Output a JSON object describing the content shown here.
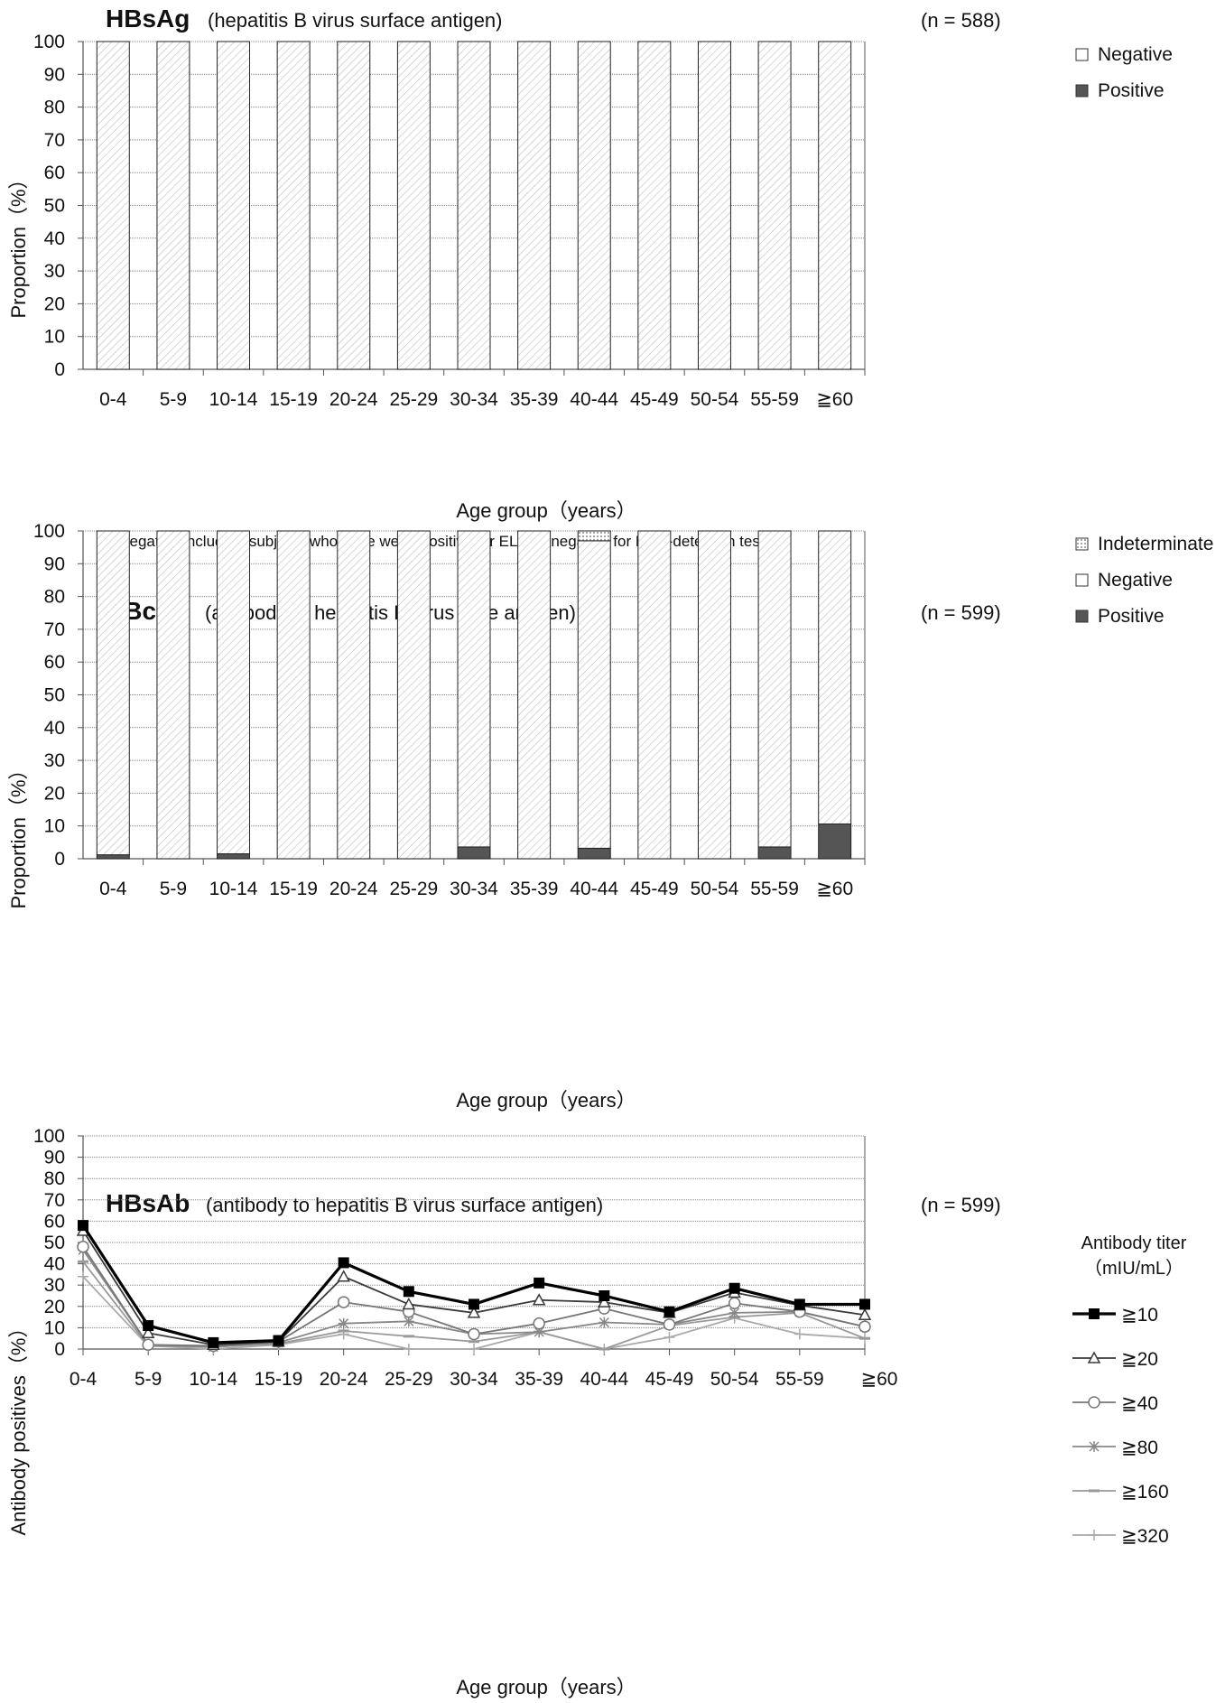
{
  "categories": [
    "0-4",
    "5-9",
    "10-14",
    "15-19",
    "20-24",
    "25-29",
    "30-34",
    "35-39",
    "40-44",
    "45-49",
    "50-54",
    "55-59",
    "≧60"
  ],
  "colors": {
    "positive": "#555555",
    "hatch": "#c8c8c8",
    "grid": "#888888",
    "axis": "#555555"
  },
  "chart_data": [
    {
      "type": "bar",
      "title_bold": "HBsAg",
      "title_rest": "(hepatitis B virus surface antigen)",
      "n_label": "(n = 588)",
      "xlabel": "Age group（years）",
      "ylabel": "Proportion（%）",
      "ylim": [
        0,
        100
      ],
      "yticks": [
        0,
        10,
        20,
        30,
        40,
        50,
        60,
        70,
        80,
        90,
        100
      ],
      "grid": true,
      "legend_position": "top-right",
      "stacked": true,
      "note": "※Negative include 9 subjects who were weak-positive for ELISA (negative for DNA-detection test).",
      "series": [
        {
          "name": "Positive",
          "values": [
            0,
            0,
            0,
            0,
            0,
            0,
            0,
            0,
            0,
            0,
            0,
            0,
            0
          ]
        },
        {
          "name": "Negative",
          "values": [
            100,
            100,
            100,
            100,
            100,
            100,
            100,
            100,
            100,
            100,
            100,
            100,
            100
          ]
        }
      ],
      "legend": [
        "Negative",
        "Positive"
      ]
    },
    {
      "type": "bar",
      "title_bold": "HBcAb",
      "title_rest": "(antibody to hepatitis B virus core antigen)",
      "n_label": "(n = 599)",
      "xlabel": "Age group（years）",
      "ylabel": "Proportion（%）",
      "ylim": [
        0,
        100
      ],
      "yticks": [
        0,
        10,
        20,
        30,
        40,
        50,
        60,
        70,
        80,
        90,
        100
      ],
      "grid": true,
      "legend_position": "top-right",
      "stacked": true,
      "series": [
        {
          "name": "Positive",
          "values": [
            1.2,
            0,
            1.5,
            0,
            0,
            0,
            3.6,
            0,
            3.2,
            0,
            0,
            3.6,
            10.6
          ]
        },
        {
          "name": "Negative",
          "values": [
            98.8,
            100,
            98.5,
            100,
            100,
            100,
            96.4,
            100,
            93.8,
            100,
            100,
            96.4,
            89.4
          ]
        },
        {
          "name": "Indeterminate",
          "values": [
            0,
            0,
            0,
            0,
            0,
            0,
            0,
            0,
            3.0,
            0,
            0,
            0,
            0
          ]
        }
      ],
      "legend": [
        "Indeterminate",
        "Negative",
        "Positive"
      ]
    },
    {
      "type": "line",
      "title_bold": "HBsAb",
      "title_rest": "(antibody to hepatitis B virus surface antigen)",
      "n_label": "(n = 599)",
      "xlabel": "Age group（years）",
      "ylabel": "Antibody positives（%）",
      "ylim": [
        0,
        100
      ],
      "yticks": [
        0,
        10,
        20,
        30,
        40,
        50,
        60,
        70,
        80,
        90,
        100
      ],
      "grid": true,
      "legend_position": "right",
      "legend_title": "Antibody titer",
      "legend_subtitle": "（mIU/mL）",
      "series": [
        {
          "name": "≧10",
          "marker": "square",
          "color": "#000000",
          "width": 3.2,
          "values": [
            58,
            11,
            3,
            4,
            40.5,
            27,
            21,
            31,
            25,
            17.5,
            28.5,
            21,
            21
          ]
        },
        {
          "name": "≧20",
          "marker": "triangle",
          "color": "#3a3a3a",
          "width": 1.8,
          "values": [
            55.5,
            7.5,
            2,
            3.5,
            34,
            21,
            17,
            23,
            22,
            17,
            26.5,
            20.5,
            16
          ]
        },
        {
          "name": "≧40",
          "marker": "circle",
          "color": "#777777",
          "width": 1.8,
          "values": [
            48,
            2,
            1.5,
            3.5,
            22,
            17.5,
            7,
            12,
            19,
            11.5,
            21.5,
            17.5,
            10.5
          ]
        },
        {
          "name": "≧80",
          "marker": "star",
          "color": "#888888",
          "width": 1.8,
          "values": [
            46.5,
            2,
            1,
            3,
            12,
            13,
            7,
            8,
            12.5,
            11.5,
            17,
            17.5,
            10.5
          ]
        },
        {
          "name": "≧160",
          "marker": "dash",
          "color": "#999999",
          "width": 1.8,
          "values": [
            41,
            1.5,
            1,
            2.5,
            8.5,
            6,
            3.5,
            8,
            0,
            11,
            15,
            17,
            5
          ]
        },
        {
          "name": "≧320",
          "marker": "plus",
          "color": "#aaaaaa",
          "width": 1.8,
          "values": [
            34,
            1.5,
            0,
            2,
            7,
            0,
            0,
            8,
            0,
            5.5,
            14.5,
            7,
            5
          ]
        }
      ]
    }
  ]
}
